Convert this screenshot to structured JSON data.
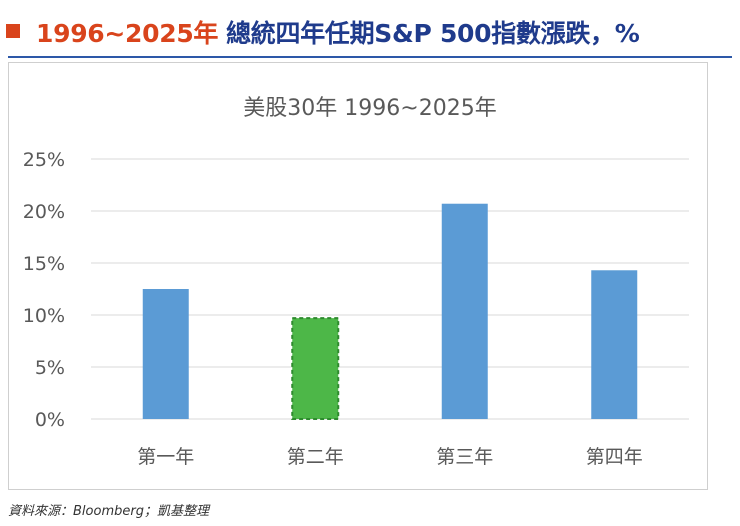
{
  "header": {
    "title_accent": "1996~2025年",
    "title_main": "總統四年任期S&P 500指數漲跌，%"
  },
  "chart_data": {
    "type": "bar",
    "title": "美股30年 1996~2025年",
    "categories": [
      "第一年",
      "第二年",
      "第三年",
      "第四年"
    ],
    "values": [
      12.5,
      9.7,
      20.7,
      14.3
    ],
    "ylim": [
      0,
      25
    ],
    "yticks": [
      0,
      5,
      10,
      15,
      20,
      25
    ],
    "ytick_labels": [
      "0%",
      "5%",
      "10%",
      "15%",
      "20%",
      "25%"
    ],
    "xlabel": "",
    "ylabel": "",
    "grid": true,
    "bar_colors": [
      "#5b9bd5",
      "#4db748",
      "#5b9bd5",
      "#5b9bd5"
    ],
    "highlight_index": 1,
    "highlight_border_color": "#2e8b2e",
    "grid_color": "#d9d9d9",
    "tick_text_color": "#595959"
  },
  "source": "資料來源：Bloomberg；凱基整理",
  "colors": {
    "accent": "#d9441c",
    "brand_blue": "#1f3b8c",
    "rule_blue": "#2d58a8"
  }
}
